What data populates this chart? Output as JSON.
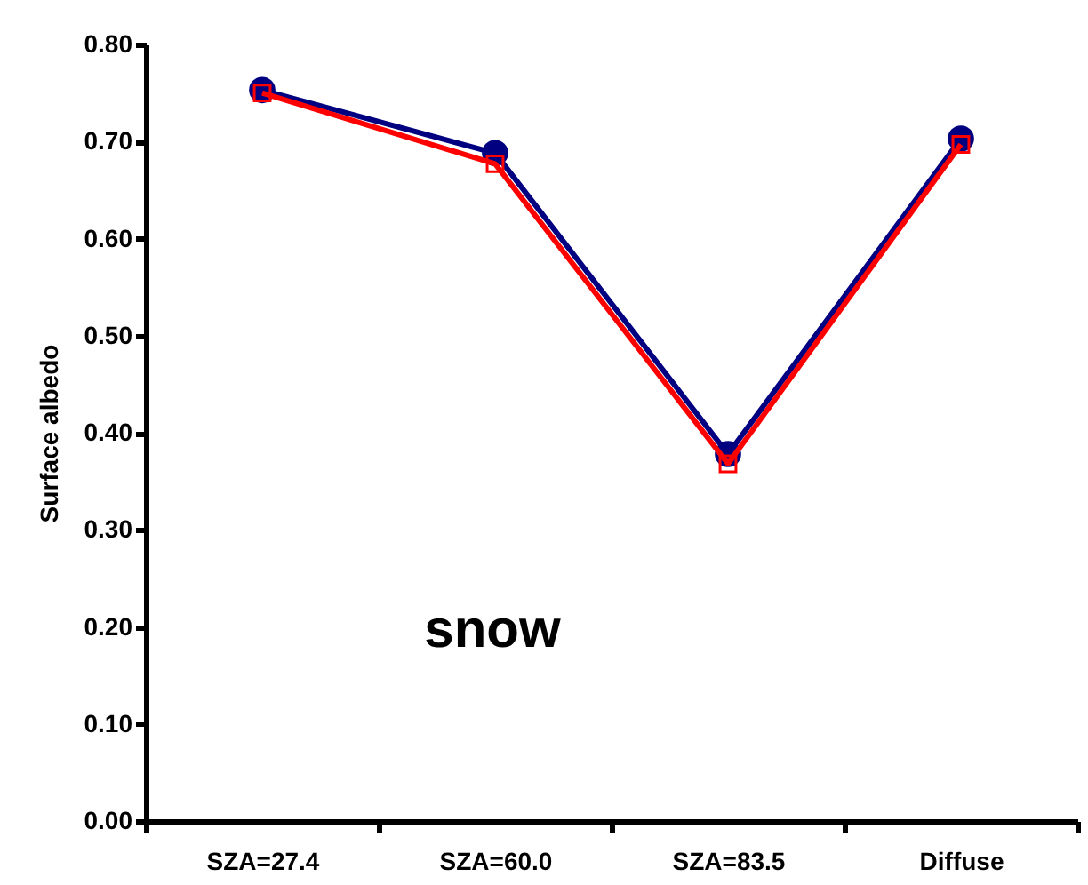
{
  "chart_data": {
    "type": "line",
    "ylabel": "Surface albedo",
    "categories": [
      "SZA=27.4",
      "SZA=60.0",
      "SZA=83.5",
      "Diffuse"
    ],
    "series": [
      {
        "color": "#000080",
        "marker": "circle",
        "values": [
          0.753,
          0.688,
          0.378,
          0.703
        ]
      },
      {
        "color": "#ff0000",
        "marker": "square",
        "values": [
          0.75,
          0.677,
          0.368,
          0.697
        ]
      }
    ],
    "ylim": [
      0,
      0.8
    ],
    "yticks": [
      {
        "value": 0,
        "label": "0.00"
      },
      {
        "value": 0.1,
        "label": "0.10"
      },
      {
        "value": 0.2,
        "label": "0.20"
      },
      {
        "value": 0.3,
        "label": "0.30"
      },
      {
        "value": 0.4,
        "label": "0.40"
      },
      {
        "value": 0.5,
        "label": "0.50"
      },
      {
        "value": 0.6,
        "label": "0.60"
      },
      {
        "value": 0.7,
        "label": "0.70"
      },
      {
        "value": 0.8,
        "label": "0.80"
      }
    ],
    "grid": false,
    "annotations": [
      "snow"
    ]
  }
}
